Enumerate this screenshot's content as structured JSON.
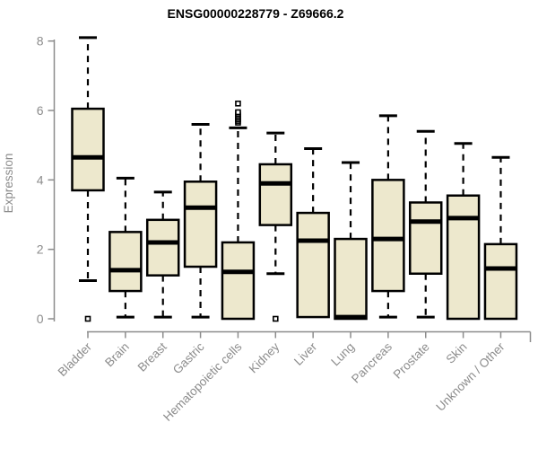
{
  "chart_data": {
    "type": "boxplot",
    "title": "ENSG00000228779 - Z69666.2",
    "xlabel": "",
    "ylabel": "Expression",
    "ylim": [
      0,
      8
    ],
    "yticks": [
      0,
      2,
      4,
      6,
      8
    ],
    "grid": false,
    "legend": null,
    "box_fill": "#EDE8CD",
    "box_stroke": "#000000",
    "median_color": "#000000",
    "whisker_color": "#000000",
    "axis_color": "#8C8C8C",
    "tick_label_color": "#8C8C8C",
    "title_color": "#000000",
    "categories": [
      "Bladder",
      "Brain",
      "Breast",
      "Gastric",
      "Hematopoietic cells",
      "Kidney",
      "Liver",
      "Lung",
      "Pancreas",
      "Prostate",
      "Skin",
      "Unknown / Other"
    ],
    "boxes": [
      {
        "category": "Bladder",
        "whisker_low": 1.1,
        "q1": 3.7,
        "median": 4.65,
        "q3": 6.05,
        "whisker_high": 8.1,
        "outliers": [
          0
        ]
      },
      {
        "category": "Brain",
        "whisker_low": 0.05,
        "q1": 0.8,
        "median": 1.4,
        "q3": 2.5,
        "whisker_high": 4.05,
        "outliers": []
      },
      {
        "category": "Breast",
        "whisker_low": 0.05,
        "q1": 1.25,
        "median": 2.2,
        "q3": 2.85,
        "whisker_high": 3.65,
        "outliers": []
      },
      {
        "category": "Gastric",
        "whisker_low": 0.05,
        "q1": 1.5,
        "median": 3.2,
        "q3": 3.95,
        "whisker_high": 5.6,
        "outliers": []
      },
      {
        "category": "Hematopoietic cells",
        "whisker_low": null,
        "q1": 0,
        "median": 1.35,
        "q3": 2.2,
        "whisker_high": 5.5,
        "outliers": [
          5.65,
          5.7,
          5.75,
          5.8,
          5.85,
          5.9,
          5.95,
          6.2
        ]
      },
      {
        "category": "Kidney",
        "whisker_low": 1.3,
        "q1": 2.7,
        "median": 3.9,
        "q3": 4.45,
        "whisker_high": 5.35,
        "outliers": [
          0
        ]
      },
      {
        "category": "Liver",
        "whisker_low": null,
        "q1": 0.05,
        "median": 2.25,
        "q3": 3.05,
        "whisker_high": 4.9,
        "outliers": []
      },
      {
        "category": "Lung",
        "whisker_low": null,
        "q1": 0,
        "median": 0.05,
        "q3": 2.3,
        "whisker_high": 4.5,
        "outliers": []
      },
      {
        "category": "Pancreas",
        "whisker_low": 0.05,
        "q1": 0.8,
        "median": 2.3,
        "q3": 4.0,
        "whisker_high": 5.85,
        "outliers": []
      },
      {
        "category": "Prostate",
        "whisker_low": 0.05,
        "q1": 1.3,
        "median": 2.8,
        "q3": 3.35,
        "whisker_high": 5.4,
        "outliers": []
      },
      {
        "category": "Skin",
        "whisker_low": null,
        "q1": 0,
        "median": 2.9,
        "q3": 3.55,
        "whisker_high": 5.05,
        "outliers": []
      },
      {
        "category": "Unknown / Other",
        "whisker_low": null,
        "q1": 0,
        "median": 1.45,
        "q3": 2.15,
        "whisker_high": 4.65,
        "outliers": []
      }
    ]
  }
}
